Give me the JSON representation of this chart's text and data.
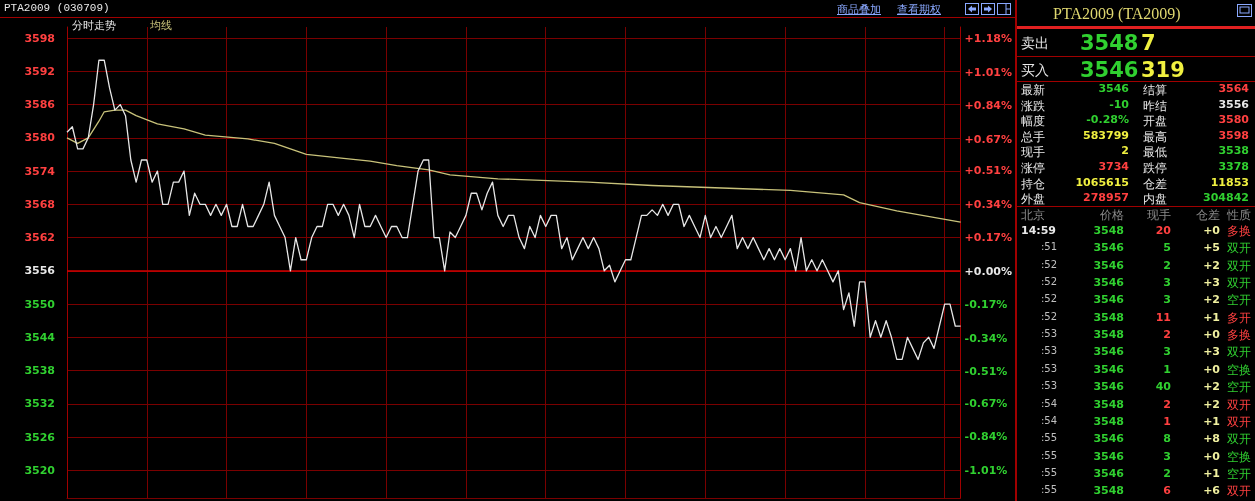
{
  "chart_data": [
    {
      "type": "line",
      "title": "PTA2009 (030709)",
      "annotations": [
        "商品叠加",
        "查看期权"
      ],
      "categories": [
        null,
        null,
        null,
        null,
        null,
        null,
        null,
        null,
        null,
        null,
        null,
        null,
        null,
        null,
        null,
        null,
        null,
        null,
        null,
        null,
        null,
        null,
        null,
        null,
        null,
        null,
        null,
        null,
        null,
        null,
        null,
        null,
        null,
        null,
        null,
        null,
        null,
        null,
        null,
        null,
        null,
        null,
        null,
        null,
        null,
        null,
        null,
        null,
        null,
        null,
        null,
        null,
        null,
        null,
        null,
        null,
        null,
        null,
        null,
        null,
        null,
        null,
        null,
        null,
        null,
        null,
        null,
        null,
        null,
        null,
        null,
        null,
        null,
        null,
        null,
        null,
        null,
        null,
        null,
        null,
        null,
        null,
        null,
        null,
        null,
        null,
        null,
        null,
        null,
        null,
        null,
        null,
        null,
        null,
        null,
        null,
        null,
        null,
        null,
        null,
        null,
        null,
        null,
        null,
        null,
        null,
        null,
        null,
        null,
        null,
        null,
        null,
        null,
        null,
        null,
        null,
        null,
        null,
        null,
        null,
        null,
        null,
        null,
        null,
        null,
        null,
        null,
        null,
        null,
        null,
        null,
        null,
        null,
        null,
        null,
        null,
        null,
        null,
        null,
        null,
        null,
        null,
        null,
        null,
        null,
        null,
        null,
        null,
        null,
        null,
        null,
        null,
        null,
        null,
        null,
        null,
        null,
        null,
        null,
        null,
        null,
        null,
        null,
        null,
        null,
        null,
        null,
        null,
        null
      ],
      "ylim": [
        3515,
        3600
      ],
      "yticks": [
        3520,
        3526,
        3532,
        3538,
        3544,
        3550,
        3556,
        3562,
        3568,
        3574,
        3580,
        3586,
        3592,
        3598
      ],
      "y2lim": [
        -1.15,
        1.24
      ],
      "y2ticks": [
        {
          "value": -1.01,
          "label": "-1.01%"
        },
        {
          "value": -0.84,
          "label": "-0.84%"
        },
        {
          "value": -0.67,
          "label": "-0.67%"
        },
        {
          "value": -0.51,
          "label": "-0.51%"
        },
        {
          "value": -0.34,
          "label": "-0.34%"
        },
        {
          "value": -0.17,
          "label": "-0.17%"
        },
        {
          "value": 0,
          "label": "+0.00%"
        },
        {
          "value": 0.17,
          "label": "+0.17%"
        },
        {
          "value": 0.34,
          "label": "+0.34%"
        },
        {
          "value": 0.51,
          "label": "+0.51%"
        },
        {
          "value": 0.67,
          "label": "+0.67%"
        },
        {
          "value": 0.84,
          "label": "+0.84%"
        },
        {
          "value": 1.01,
          "label": "+1.01%"
        },
        {
          "value": 1.18,
          "label": "+1.18%"
        }
      ],
      "tick_labels": "y",
      "grid": true,
      "ref_lines": [
        {
          "axis": "y",
          "value": 3556,
          "color": "#d00000"
        }
      ],
      "series": [
        {
          "name": "分时走势",
          "color": "#e6e6e6",
          "values": [
            3581,
            3582,
            3578,
            3578,
            3580,
            3586,
            3594,
            3594,
            3589,
            3585,
            3586,
            3584,
            3576,
            3572,
            3576,
            3576,
            3572,
            3574,
            3568,
            3568,
            3572,
            3572,
            3574,
            3566,
            3570,
            3568,
            3568,
            3566,
            3568,
            3566,
            3568,
            3564,
            3564,
            3568,
            3564,
            3564,
            3566,
            3568,
            3572,
            3566,
            3564,
            3562,
            3556,
            3562,
            3558,
            3558,
            3562,
            3564,
            3564,
            3568,
            3568,
            3566,
            3568,
            3566,
            3562,
            3568,
            3564,
            3564,
            3566,
            3564,
            3562,
            3564,
            3564,
            3562,
            3562,
            3568,
            3574,
            3576,
            3576,
            3562,
            3562,
            3556,
            3563,
            3562,
            3564,
            3566,
            3570,
            3570,
            3567,
            3570,
            3572,
            3566,
            3564,
            3566,
            3566,
            3562,
            3560,
            3564,
            3562,
            3566,
            3564,
            3566,
            3566,
            3560,
            3562,
            3558,
            3560,
            3562,
            3560,
            3562,
            3560,
            3556,
            3557,
            3554,
            3556,
            3558,
            3558,
            3562,
            3566,
            3566,
            3567,
            3566,
            3568,
            3566,
            3568,
            3568,
            3564,
            3566,
            3564,
            3562,
            3566,
            3562,
            3564,
            3562,
            3564,
            3566,
            3560,
            3562,
            3560,
            3562,
            3560,
            3558,
            3560,
            3558,
            3560,
            3558,
            3560,
            3556,
            3562,
            3556,
            3558,
            3556,
            3558,
            3556,
            3554,
            3556,
            3549,
            3552,
            3546,
            3554,
            3554,
            3544,
            3547,
            3544,
            3547,
            3544,
            3540,
            3540,
            3544,
            3542,
            3540,
            3543,
            3544,
            3542,
            3546,
            3550,
            3550,
            3546,
            3546
          ]
        },
        {
          "name": "均线",
          "color": "#c8c27a",
          "values": [
            3580,
            null,
            3579,
            null,
            3580,
            null,
            3583,
            3584.7,
            null,
            3585,
            null,
            3585,
            null,
            3584,
            null,
            null,
            null,
            3582.5,
            null,
            null,
            null,
            null,
            3581.6,
            null,
            null,
            null,
            3580.5,
            null,
            null,
            null,
            null,
            null,
            null,
            null,
            3579.8,
            null,
            null,
            null,
            null,
            3579,
            null,
            null,
            3578,
            null,
            null,
            3577,
            null,
            null,
            null,
            null,
            null,
            null,
            3576.3,
            null,
            null,
            null,
            null,
            3575.8,
            null,
            null,
            null,
            null,
            3575,
            null,
            null,
            null,
            null,
            null,
            3574.2,
            null,
            null,
            null,
            3573.3,
            null,
            null,
            null,
            null,
            null,
            null,
            null,
            null,
            3572.6,
            null,
            null,
            null,
            null,
            null,
            null,
            null,
            null,
            null,
            null,
            null,
            null,
            null,
            null,
            null,
            null,
            3572,
            null,
            null,
            null,
            null,
            null,
            null,
            null,
            null,
            null,
            null,
            null,
            3571.4,
            null,
            null,
            null,
            null,
            null,
            null,
            null,
            null,
            null,
            null,
            null,
            null,
            null,
            null,
            null,
            null,
            null,
            null,
            null,
            null,
            null,
            null,
            null,
            null,
            null,
            3570.5,
            null,
            null,
            null,
            null,
            null,
            null,
            null,
            null,
            null,
            3569.7,
            null,
            null,
            3568.3,
            null,
            null,
            null,
            null,
            null,
            null,
            3566.8,
            null,
            null,
            null,
            null,
            null,
            null,
            null,
            null,
            null,
            null,
            null,
            3564.8
          ]
        }
      ]
    },
    {
      "type": "other",
      "title": "PTA2009 (TA2009)",
      "annotations": [
        "卖出",
        "3548",
        "7",
        "买入",
        "3546",
        "319",
        "最新",
        "3546",
        "结算",
        "3564",
        "涨跌",
        "-10",
        "昨结",
        "3556",
        "幅度",
        "-0.28%",
        "开盘",
        "3580",
        "总手",
        "583799",
        "最高",
        "3598",
        "现手",
        "2",
        "最低",
        "3538",
        "涨停",
        "3734",
        "跌停",
        "3378",
        "持仓",
        "1065615",
        "仓差",
        "11853",
        "外盘",
        "278957",
        "内盘",
        "304842",
        "北京",
        "价格",
        "现手",
        "仓差",
        "性质",
        "14:59",
        "3548",
        "20",
        "+0",
        "多换",
        ":51",
        "3546",
        "5",
        "+5",
        "双开",
        ":52",
        "3546",
        "2",
        "+2",
        "双开",
        ":52",
        "3546",
        "3",
        "+3",
        "双开",
        ":52",
        "3546",
        "3",
        "+2",
        "空开",
        ":52",
        "3548",
        "11",
        "+1",
        "多开",
        ":53",
        "3548",
        "2",
        "+0",
        "多换",
        ":53",
        "3546",
        "3",
        "+3",
        "双开",
        ":53",
        "3546",
        "1",
        "+0",
        "空换",
        ":53",
        "3546",
        "40",
        "+2",
        "空开",
        ":54",
        "3548",
        "2",
        "+2",
        "双开",
        ":54",
        "3548",
        "1",
        "+1",
        "双开",
        ":55",
        "3546",
        "8",
        "+8",
        "双开",
        ":55",
        "3546",
        "3",
        "+0",
        "空换",
        ":55",
        "3546",
        "2",
        "+1",
        "空开",
        ":55",
        "3548",
        "6",
        "+6",
        "双开"
      ]
    }
  ]
}
